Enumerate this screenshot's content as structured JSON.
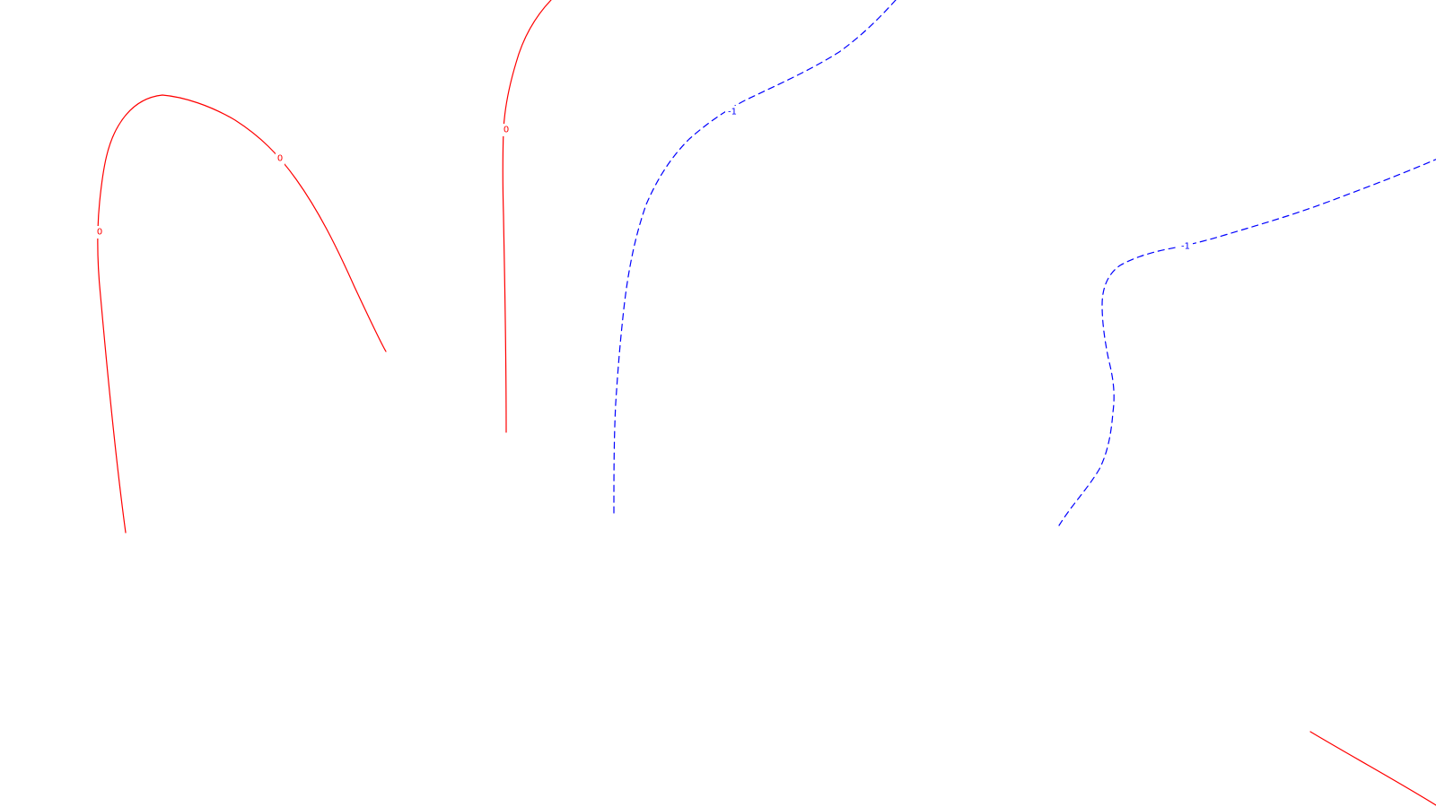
{
  "contours": {
    "colors": {
      "positive": "#ff0000",
      "negative": "#0000ff",
      "background": "#ffffff"
    },
    "levels": [
      {
        "id": "zero",
        "value": 0,
        "label": "0",
        "style": "solid",
        "color": "#ff0000"
      },
      {
        "id": "neg-one",
        "value": -1,
        "label": "-1",
        "style": "dashed",
        "color": "#0000ff"
      }
    ]
  }
}
